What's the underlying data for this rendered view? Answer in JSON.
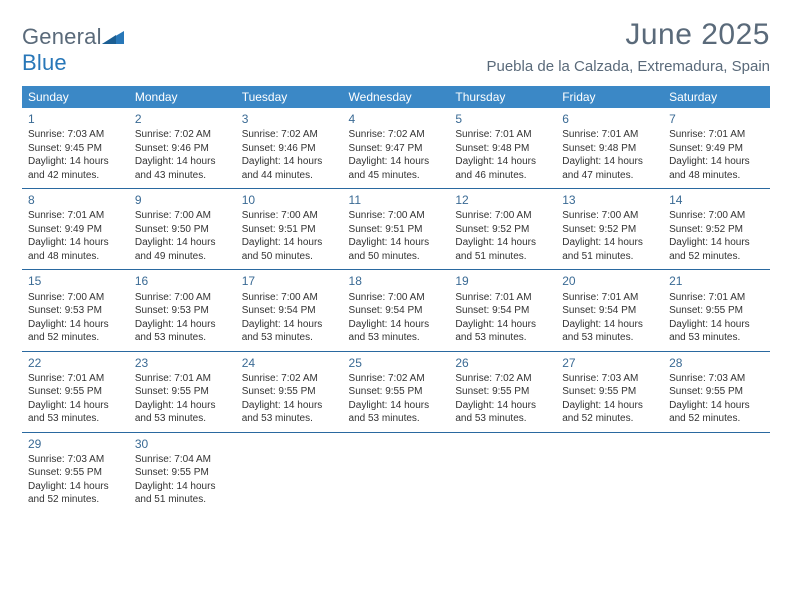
{
  "brand": {
    "word1": "General",
    "word2": "Blue"
  },
  "title": "June 2025",
  "location": "Puebla de la Calzada, Extremadura, Spain",
  "colors": {
    "header_bg": "#3b88c6",
    "header_text": "#ffffff",
    "rule": "#2a69a0",
    "title_color": "#5a6a7a",
    "daynum_color": "#3a6a94",
    "body_text": "#333333",
    "background": "#ffffff"
  },
  "typography": {
    "title_fontsize": 30,
    "location_fontsize": 15,
    "dayheader_fontsize": 12,
    "daynum_fontsize": 12,
    "cell_fontsize": 10
  },
  "day_headers": [
    "Sunday",
    "Monday",
    "Tuesday",
    "Wednesday",
    "Thursday",
    "Friday",
    "Saturday"
  ],
  "weeks": [
    [
      {
        "n": "1",
        "sr": "Sunrise: 7:03 AM",
        "ss": "Sunset: 9:45 PM",
        "dl": "Daylight: 14 hours and 42 minutes."
      },
      {
        "n": "2",
        "sr": "Sunrise: 7:02 AM",
        "ss": "Sunset: 9:46 PM",
        "dl": "Daylight: 14 hours and 43 minutes."
      },
      {
        "n": "3",
        "sr": "Sunrise: 7:02 AM",
        "ss": "Sunset: 9:46 PM",
        "dl": "Daylight: 14 hours and 44 minutes."
      },
      {
        "n": "4",
        "sr": "Sunrise: 7:02 AM",
        "ss": "Sunset: 9:47 PM",
        "dl": "Daylight: 14 hours and 45 minutes."
      },
      {
        "n": "5",
        "sr": "Sunrise: 7:01 AM",
        "ss": "Sunset: 9:48 PM",
        "dl": "Daylight: 14 hours and 46 minutes."
      },
      {
        "n": "6",
        "sr": "Sunrise: 7:01 AM",
        "ss": "Sunset: 9:48 PM",
        "dl": "Daylight: 14 hours and 47 minutes."
      },
      {
        "n": "7",
        "sr": "Sunrise: 7:01 AM",
        "ss": "Sunset: 9:49 PM",
        "dl": "Daylight: 14 hours and 48 minutes."
      }
    ],
    [
      {
        "n": "8",
        "sr": "Sunrise: 7:01 AM",
        "ss": "Sunset: 9:49 PM",
        "dl": "Daylight: 14 hours and 48 minutes."
      },
      {
        "n": "9",
        "sr": "Sunrise: 7:00 AM",
        "ss": "Sunset: 9:50 PM",
        "dl": "Daylight: 14 hours and 49 minutes."
      },
      {
        "n": "10",
        "sr": "Sunrise: 7:00 AM",
        "ss": "Sunset: 9:51 PM",
        "dl": "Daylight: 14 hours and 50 minutes."
      },
      {
        "n": "11",
        "sr": "Sunrise: 7:00 AM",
        "ss": "Sunset: 9:51 PM",
        "dl": "Daylight: 14 hours and 50 minutes."
      },
      {
        "n": "12",
        "sr": "Sunrise: 7:00 AM",
        "ss": "Sunset: 9:52 PM",
        "dl": "Daylight: 14 hours and 51 minutes."
      },
      {
        "n": "13",
        "sr": "Sunrise: 7:00 AM",
        "ss": "Sunset: 9:52 PM",
        "dl": "Daylight: 14 hours and 51 minutes."
      },
      {
        "n": "14",
        "sr": "Sunrise: 7:00 AM",
        "ss": "Sunset: 9:52 PM",
        "dl": "Daylight: 14 hours and 52 minutes."
      }
    ],
    [
      {
        "n": "15",
        "sr": "Sunrise: 7:00 AM",
        "ss": "Sunset: 9:53 PM",
        "dl": "Daylight: 14 hours and 52 minutes."
      },
      {
        "n": "16",
        "sr": "Sunrise: 7:00 AM",
        "ss": "Sunset: 9:53 PM",
        "dl": "Daylight: 14 hours and 53 minutes."
      },
      {
        "n": "17",
        "sr": "Sunrise: 7:00 AM",
        "ss": "Sunset: 9:54 PM",
        "dl": "Daylight: 14 hours and 53 minutes."
      },
      {
        "n": "18",
        "sr": "Sunrise: 7:00 AM",
        "ss": "Sunset: 9:54 PM",
        "dl": "Daylight: 14 hours and 53 minutes."
      },
      {
        "n": "19",
        "sr": "Sunrise: 7:01 AM",
        "ss": "Sunset: 9:54 PM",
        "dl": "Daylight: 14 hours and 53 minutes."
      },
      {
        "n": "20",
        "sr": "Sunrise: 7:01 AM",
        "ss": "Sunset: 9:54 PM",
        "dl": "Daylight: 14 hours and 53 minutes."
      },
      {
        "n": "21",
        "sr": "Sunrise: 7:01 AM",
        "ss": "Sunset: 9:55 PM",
        "dl": "Daylight: 14 hours and 53 minutes."
      }
    ],
    [
      {
        "n": "22",
        "sr": "Sunrise: 7:01 AM",
        "ss": "Sunset: 9:55 PM",
        "dl": "Daylight: 14 hours and 53 minutes."
      },
      {
        "n": "23",
        "sr": "Sunrise: 7:01 AM",
        "ss": "Sunset: 9:55 PM",
        "dl": "Daylight: 14 hours and 53 minutes."
      },
      {
        "n": "24",
        "sr": "Sunrise: 7:02 AM",
        "ss": "Sunset: 9:55 PM",
        "dl": "Daylight: 14 hours and 53 minutes."
      },
      {
        "n": "25",
        "sr": "Sunrise: 7:02 AM",
        "ss": "Sunset: 9:55 PM",
        "dl": "Daylight: 14 hours and 53 minutes."
      },
      {
        "n": "26",
        "sr": "Sunrise: 7:02 AM",
        "ss": "Sunset: 9:55 PM",
        "dl": "Daylight: 14 hours and 53 minutes."
      },
      {
        "n": "27",
        "sr": "Sunrise: 7:03 AM",
        "ss": "Sunset: 9:55 PM",
        "dl": "Daylight: 14 hours and 52 minutes."
      },
      {
        "n": "28",
        "sr": "Sunrise: 7:03 AM",
        "ss": "Sunset: 9:55 PM",
        "dl": "Daylight: 14 hours and 52 minutes."
      }
    ],
    [
      {
        "n": "29",
        "sr": "Sunrise: 7:03 AM",
        "ss": "Sunset: 9:55 PM",
        "dl": "Daylight: 14 hours and 52 minutes."
      },
      {
        "n": "30",
        "sr": "Sunrise: 7:04 AM",
        "ss": "Sunset: 9:55 PM",
        "dl": "Daylight: 14 hours and 51 minutes."
      },
      null,
      null,
      null,
      null,
      null
    ]
  ]
}
